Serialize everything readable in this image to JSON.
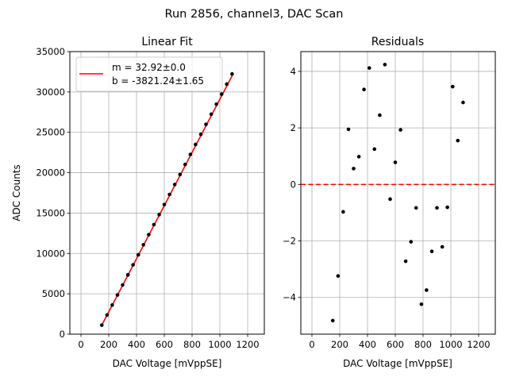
{
  "figure_title": "Run 2856, channel3, DAC Scan",
  "colors": {
    "fit_line": "#ff0000",
    "points": "#000000",
    "grid": "#b0b0b0",
    "zero_line": "#ff0000"
  },
  "chart_data": [
    {
      "type": "scatter",
      "title": "Linear Fit",
      "xlabel": "DAC Voltage [mVppSE]",
      "ylabel": "ADC Counts",
      "xlim": [
        -80,
        1320
      ],
      "ylim": [
        0,
        35000
      ],
      "xticks": [
        0,
        200,
        400,
        600,
        800,
        1000,
        1200
      ],
      "xtick_labels": [
        "0",
        "200",
        "400",
        "600",
        "800",
        "1000",
        "1200"
      ],
      "yticks": [
        0,
        5000,
        10000,
        15000,
        20000,
        25000,
        30000,
        35000
      ],
      "ytick_labels": [
        "0",
        "5000",
        "10000",
        "15000",
        "20000",
        "25000",
        "30000",
        "35000"
      ],
      "grid": true,
      "x": [
        150,
        188,
        225,
        263,
        300,
        338,
        375,
        413,
        450,
        488,
        525,
        563,
        600,
        638,
        675,
        713,
        750,
        788,
        825,
        863,
        900,
        938,
        975,
        1013,
        1050,
        1088
      ],
      "y": [
        1117,
        2366,
        3606,
        4859,
        6094,
        7343,
        8583,
        9837,
        11073,
        12325,
        13568,
        14806,
        16047,
        17298,
        18528,
        19777,
        21016,
        22265,
        23500,
        24750,
        25993,
        27242,
        28485,
        29732,
        30972,
        32225
      ],
      "fit": {
        "slope": 32.92,
        "intercept": -3821.24,
        "x_range": [
          150,
          1088
        ]
      },
      "legend": {
        "position": "top-left",
        "entries": [
          "m = 32.92±0.0",
          "b = -3821.24±1.65"
        ]
      }
    },
    {
      "type": "scatter",
      "title": "Residuals",
      "xlabel": "DAC Voltage [mVppSE]",
      "ylabel": "",
      "xlim": [
        -80,
        1320
      ],
      "ylim": [
        -5.3,
        4.7
      ],
      "xticks": [
        0,
        200,
        400,
        600,
        800,
        1000,
        1200
      ],
      "xtick_labels": [
        "0",
        "200",
        "400",
        "600",
        "800",
        "1000",
        "1200"
      ],
      "yticks": [
        -4,
        -2,
        0,
        2,
        4
      ],
      "ytick_labels": [
        "−4",
        "−2",
        "0",
        "2",
        "4"
      ],
      "grid": true,
      "zero_line": 0,
      "x": [
        150,
        188,
        225,
        263,
        300,
        338,
        375,
        413,
        450,
        488,
        525,
        563,
        600,
        638,
        675,
        713,
        750,
        788,
        825,
        863,
        900,
        938,
        975,
        1013,
        1050,
        1088
      ],
      "y": [
        -4.82,
        -3.24,
        -0.97,
        1.95,
        0.56,
        0.98,
        3.36,
        4.12,
        1.25,
        2.45,
        4.24,
        -0.52,
        0.78,
        1.93,
        -2.72,
        -2.03,
        -0.83,
        -4.24,
        -3.74,
        -2.37,
        -0.83,
        -2.21,
        -0.81,
        3.46,
        1.55,
        2.9
      ]
    }
  ]
}
